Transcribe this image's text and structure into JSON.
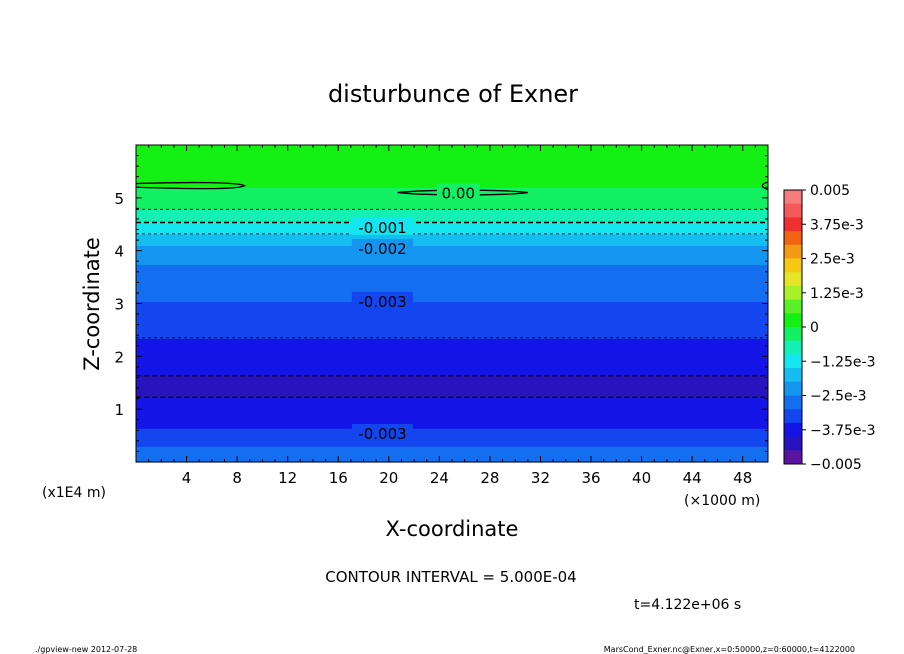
{
  "chart_data": {
    "type": "heatmap",
    "title": "disturbunce of Exner",
    "xlabel": "X-coordinate",
    "ylabel": "Z-coordinate",
    "x_unit": "(×1000 m)",
    "y_unit": "(x1E4 m)",
    "xlim": [
      0,
      50
    ],
    "ylim": [
      0,
      6
    ],
    "x_ticks": [
      "4",
      "8",
      "12",
      "16",
      "20",
      "24",
      "28",
      "32",
      "36",
      "40",
      "44",
      "48"
    ],
    "y_ticks": [
      "1",
      "2",
      "3",
      "4",
      "5"
    ],
    "z_profile": [
      {
        "z": 0.0,
        "value": -0.0025
      },
      {
        "z": 0.3,
        "value": -0.003
      },
      {
        "z": 0.65,
        "value": -0.0035
      },
      {
        "z": 0.95,
        "value": -0.0039
      },
      {
        "z": 1.5,
        "value": -0.0041
      },
      {
        "z": 1.9,
        "value": -0.0038
      },
      {
        "z": 2.5,
        "value": -0.0034
      },
      {
        "z": 3.05,
        "value": -0.003
      },
      {
        "z": 3.75,
        "value": -0.0025
      },
      {
        "z": 4.1,
        "value": -0.002
      },
      {
        "z": 4.45,
        "value": -0.0012
      },
      {
        "z": 4.7,
        "value": -0.0006
      },
      {
        "z": 5.2,
        "value": 0.0
      },
      {
        "z": 6.0,
        "value": 0.0002
      }
    ],
    "contour_labels": [
      {
        "text": "0.00",
        "x": 25.5,
        "z": 5.1
      },
      {
        "text": "-0.001",
        "x": 19.5,
        "z": 4.45
      },
      {
        "text": "-0.002",
        "x": 19.5,
        "z": 4.05
      },
      {
        "text": "-0.003",
        "x": 19.5,
        "z": 3.05
      },
      {
        "text": "-0.003",
        "x": 19.5,
        "z": 0.55
      }
    ],
    "colorbar": {
      "range": [
        -0.005,
        0.005
      ],
      "labels": [
        "0.005",
        "3.75e-3",
        "2.5e-3",
        "1.25e-3",
        "0",
        "−1.25e-3",
        "−2.5e-3",
        "−3.75e-3",
        "−0.005"
      ],
      "colors": [
        "#f47c7c",
        "#f55a5a",
        "#f03030",
        "#f06414",
        "#f59a14",
        "#f5c814",
        "#e6e628",
        "#aaf028",
        "#5af028",
        "#14f014",
        "#14f064",
        "#14f0b4",
        "#14e6f0",
        "#14bef0",
        "#1496f0",
        "#146ef0",
        "#1446f0",
        "#1414e6",
        "#2814be",
        "#5a14a0"
      ]
    },
    "contour_interval_text": "CONTOUR INTERVAL = 5.000E-04",
    "time_text": "t=4.122e+06 s"
  },
  "footer": {
    "left": "./gpview-new   2012-07-28",
    "right": "MarsCond_Exner.nc@Exner,x=0:50000,z=0:60000,t=4122000"
  }
}
